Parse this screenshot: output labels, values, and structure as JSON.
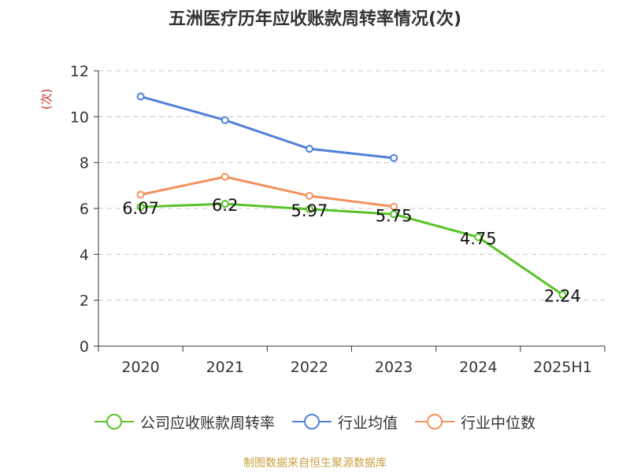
{
  "chart_data": {
    "type": "line",
    "title": "五洲医疗历年应收账款周转率情况(次)",
    "ylabel": "(次)",
    "xlabel": "",
    "categories": [
      "2020",
      "2021",
      "2022",
      "2023",
      "2024",
      "2025H1"
    ],
    "ylim": [
      0,
      12
    ],
    "yticks": [
      0,
      2,
      4,
      6,
      8,
      10,
      12
    ],
    "grid": true,
    "legend_position": "bottom",
    "series": [
      {
        "name": "公司应收账款周转率",
        "color": "#5ac229",
        "values": [
          6.07,
          6.2,
          5.97,
          5.75,
          4.75,
          2.24
        ],
        "labels": [
          "6.07",
          "6.2",
          "5.97",
          "5.75",
          "4.75",
          "2.24"
        ]
      },
      {
        "name": "行业均值",
        "color": "#4f81d9",
        "values": [
          10.88,
          9.85,
          8.6,
          8.2,
          null,
          null
        ]
      },
      {
        "name": "行业中位数",
        "color": "#f3915f",
        "values": [
          6.6,
          7.38,
          6.55,
          6.08,
          null,
          null
        ]
      }
    ]
  },
  "source": "制图数据来自恒生聚源数据库"
}
